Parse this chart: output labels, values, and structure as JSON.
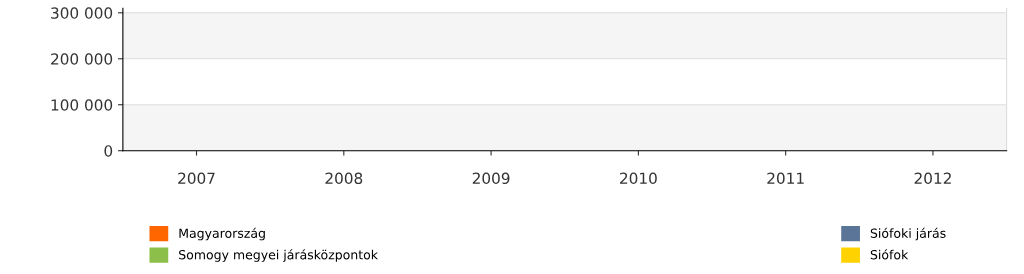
{
  "chart_data": {
    "type": "bar",
    "categories": [
      "2007",
      "2008",
      "2009",
      "2010",
      "2011",
      "2012"
    ],
    "series": [
      {
        "name": "Magyarország",
        "color": "#ff6600",
        "values": [
          null,
          null,
          null,
          null,
          null,
          null
        ]
      },
      {
        "name": "Siófoki járás",
        "color": "#5b7599",
        "values": [
          null,
          null,
          null,
          null,
          null,
          null
        ]
      },
      {
        "name": "Somogy megyei járásközpontok",
        "color": "#8cbf4a",
        "values": [
          null,
          null,
          null,
          null,
          null,
          null
        ]
      },
      {
        "name": "Siófok",
        "color": "#ffd200",
        "values": [
          null,
          null,
          null,
          null,
          null,
          null
        ]
      }
    ],
    "ylim": [
      0,
      310000
    ],
    "yticks": [
      0,
      {
        "value": 100000,
        "label": "100 000"
      },
      {
        "value": 200000,
        "label": "200 000"
      },
      {
        "value": 300000,
        "label": "300 000"
      }
    ],
    "grid": "y",
    "legend": "bottom"
  }
}
